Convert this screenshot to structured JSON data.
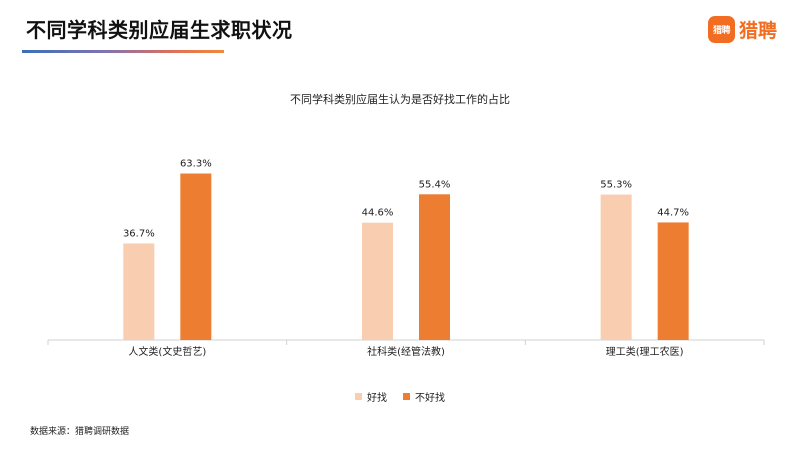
{
  "header": {
    "title": "不同学科类别应届生求职状况",
    "logo_badge": "猎聘",
    "logo_text": "猎聘"
  },
  "source": "数据来源：猎聘调研数据",
  "colors": {
    "series_1": "#f8cdb0",
    "series_2": "#ed7d31",
    "axis": "#d0d0d0",
    "logo": "#f26d21"
  },
  "chart_data": {
    "type": "bar",
    "title": "不同学科类别应届生认为是否好找工作的占比",
    "categories": [
      "人文类(文史哲艺)",
      "社科类(经管法教)",
      "理工类(理工农医)"
    ],
    "series": [
      {
        "name": "好找",
        "values": [
          36.7,
          44.6,
          55.3
        ],
        "labels": [
          "36.7%",
          "44.6%",
          "55.3%"
        ]
      },
      {
        "name": "不好找",
        "values": [
          63.3,
          55.4,
          44.7
        ],
        "labels": [
          "63.3%",
          "55.4%",
          "44.7%"
        ]
      }
    ],
    "ylim": [
      0,
      70
    ],
    "grid": false,
    "legend": "bottom"
  }
}
